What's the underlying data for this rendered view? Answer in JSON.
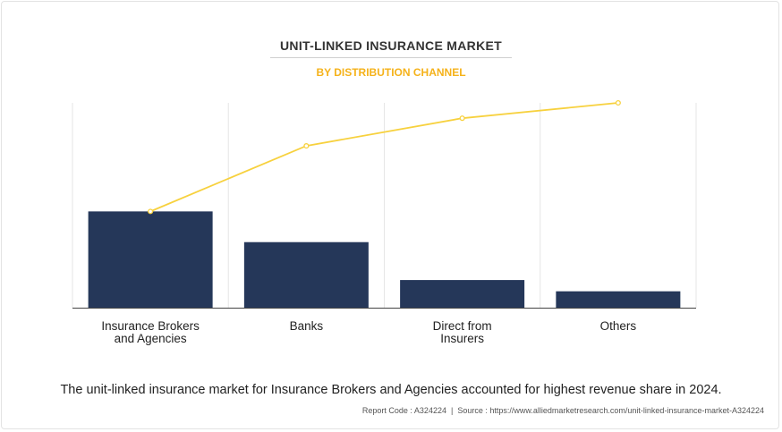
{
  "header": {
    "title": "UNIT-LINKED INSURANCE MARKET",
    "subtitle": "BY DISTRIBUTION CHANNEL"
  },
  "chart_data": {
    "type": "bar",
    "categories": [
      [
        "Insurance Brokers",
        "and Agencies"
      ],
      [
        "Banks"
      ],
      [
        "Direct from",
        "Insurers"
      ],
      [
        "Others"
      ]
    ],
    "series": [
      {
        "type": "bar",
        "values": [
          47,
          32,
          13.5,
          8
        ]
      },
      {
        "type": "line",
        "values": [
          47,
          79,
          92.5,
          100
        ]
      }
    ],
    "ylim": [
      0,
      100
    ],
    "y_axis_visible": false,
    "grid": "vertical separators",
    "colors": {
      "bar": "#253759",
      "line": "#f7d13e"
    }
  },
  "caption": "The unit-linked insurance market for Insurance Brokers and Agencies accounted for highest revenue share in 2024.",
  "footer": {
    "report_code": "Report Code : A324224",
    "separator": "|",
    "source": "Source : https://www.alliedmarketresearch.com/unit-linked-insurance-market-A324224"
  }
}
